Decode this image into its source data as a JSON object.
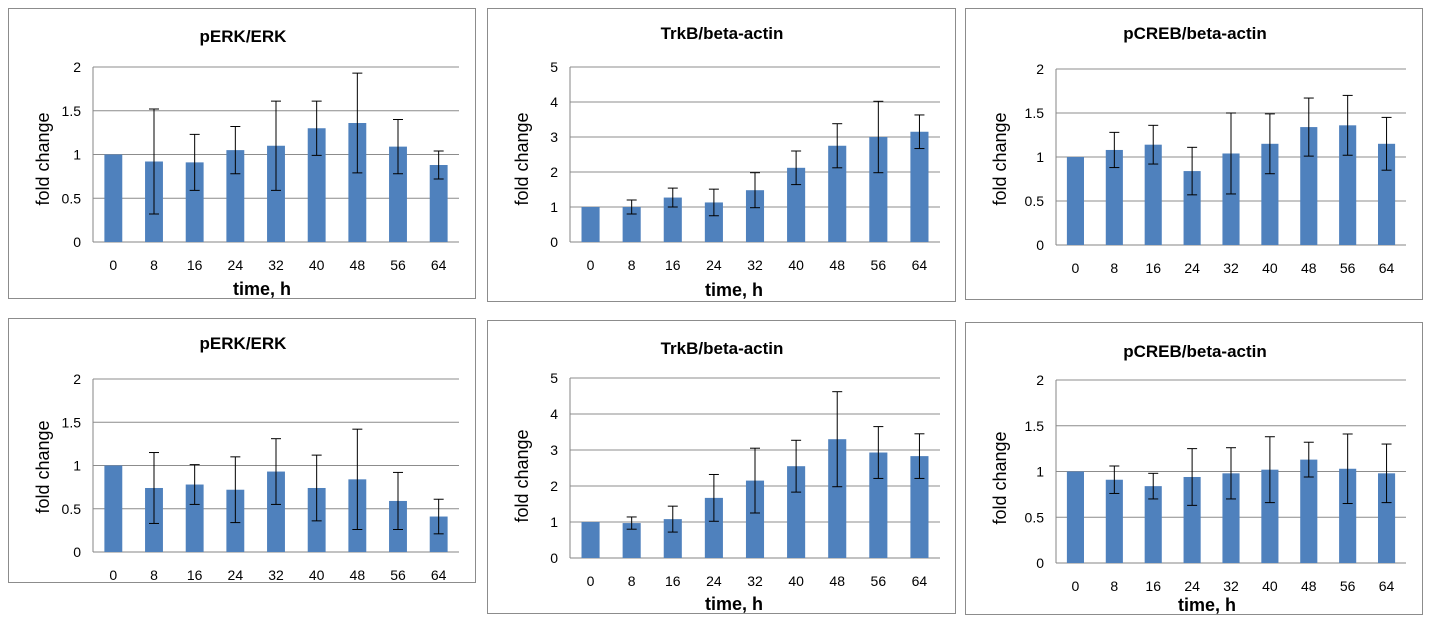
{
  "chart_data": [
    {
      "type": "bar",
      "title": "pERK/ERK",
      "xlabel": "time, h",
      "ylabel": "fold change",
      "categories": [
        "0",
        "8",
        "16",
        "24",
        "32",
        "40",
        "48",
        "56",
        "64"
      ],
      "yticks": [
        "0",
        "0.5",
        "1",
        "1.5",
        "2"
      ],
      "ylim": [
        0,
        2
      ],
      "grid": true,
      "values": [
        1.0,
        0.92,
        0.91,
        1.05,
        1.1,
        1.3,
        1.36,
        1.09,
        0.88
      ],
      "errors": [
        0.0,
        0.6,
        0.32,
        0.27,
        0.51,
        0.31,
        0.57,
        0.31,
        0.16
      ]
    },
    {
      "type": "bar",
      "title": "TrkB/beta-actin",
      "xlabel": "time, h",
      "ylabel": "fold change",
      "categories": [
        "0",
        "8",
        "16",
        "24",
        "32",
        "40",
        "48",
        "56",
        "64"
      ],
      "yticks": [
        "0",
        "1",
        "2",
        "3",
        "4",
        "5"
      ],
      "ylim": [
        0,
        5
      ],
      "grid": true,
      "values": [
        1.0,
        1.0,
        1.27,
        1.13,
        1.48,
        2.12,
        2.75,
        3.0,
        3.15
      ],
      "errors": [
        0.0,
        0.2,
        0.27,
        0.38,
        0.5,
        0.48,
        0.63,
        1.02,
        0.48
      ]
    },
    {
      "type": "bar",
      "title": "pCREB/beta-actin",
      "xlabel": "",
      "ylabel": "fold change",
      "categories": [
        "0",
        "8",
        "16",
        "24",
        "32",
        "40",
        "48",
        "56",
        "64"
      ],
      "yticks": [
        "0",
        "0.5",
        "1",
        "1.5",
        "2"
      ],
      "ylim": [
        0,
        2
      ],
      "grid": true,
      "values": [
        1.0,
        1.08,
        1.14,
        0.84,
        1.04,
        1.15,
        1.34,
        1.36,
        1.15
      ],
      "errors": [
        0.0,
        0.2,
        0.22,
        0.27,
        0.46,
        0.34,
        0.33,
        0.34,
        0.3
      ]
    },
    {
      "type": "bar",
      "title": "pERK/ERK",
      "xlabel": "",
      "ylabel": "fold change",
      "categories": [
        "0",
        "8",
        "16",
        "24",
        "32",
        "40",
        "48",
        "56",
        "64"
      ],
      "yticks": [
        "0",
        "0.5",
        "1",
        "1.5",
        "2"
      ],
      "ylim": [
        0,
        2
      ],
      "grid": true,
      "values": [
        1.0,
        0.74,
        0.78,
        0.72,
        0.93,
        0.74,
        0.84,
        0.59,
        0.41
      ],
      "errors": [
        0.0,
        0.41,
        0.23,
        0.38,
        0.38,
        0.38,
        0.58,
        0.33,
        0.2
      ]
    },
    {
      "type": "bar",
      "title": "TrkB/beta-actin",
      "xlabel": "time, h",
      "ylabel": "fold change",
      "categories": [
        "0",
        "8",
        "16",
        "24",
        "32",
        "40",
        "48",
        "56",
        "64"
      ],
      "yticks": [
        "0",
        "1",
        "2",
        "3",
        "4",
        "5"
      ],
      "ylim": [
        0,
        5
      ],
      "grid": true,
      "values": [
        1.0,
        0.97,
        1.08,
        1.67,
        2.15,
        2.55,
        3.3,
        2.93,
        2.83
      ],
      "errors": [
        0.0,
        0.17,
        0.36,
        0.65,
        0.9,
        0.72,
        1.32,
        0.72,
        0.62
      ]
    },
    {
      "type": "bar",
      "title": "pCREB/beta-actin",
      "xlabel": "time, h",
      "ylabel": "fold change",
      "categories": [
        "0",
        "8",
        "16",
        "24",
        "32",
        "40",
        "48",
        "56",
        "64"
      ],
      "yticks": [
        "0",
        "0.5",
        "1",
        "1.5",
        "2"
      ],
      "ylim": [
        0,
        2
      ],
      "grid": true,
      "values": [
        1.0,
        0.91,
        0.84,
        0.94,
        0.98,
        1.02,
        1.13,
        1.03,
        0.98
      ],
      "errors": [
        0.0,
        0.15,
        0.14,
        0.31,
        0.28,
        0.36,
        0.19,
        0.38,
        0.32
      ]
    }
  ]
}
